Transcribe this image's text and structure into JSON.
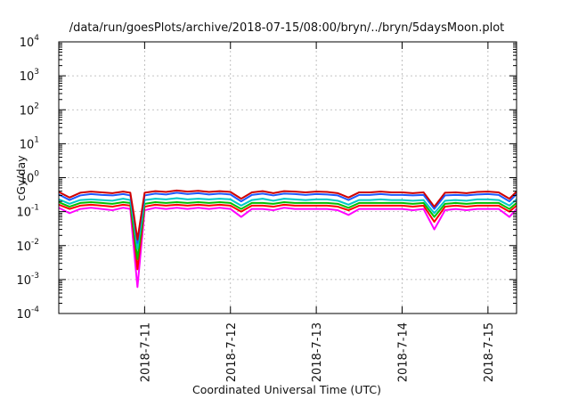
{
  "chart_data": {
    "type": "line",
    "title": "/data/run/goesPlots/archive/2018-07-15/08:00/bryn/../bryn/5daysMoon.plot",
    "xlabel": "Coordinated Universal Time (UTC)",
    "ylabel": "cGy/day",
    "yscale": "log",
    "ylim": [
      0.0001,
      10000
    ],
    "y_ticks": [
      {
        "base": "10",
        "exp": "-4",
        "value": 0.0001
      },
      {
        "base": "10",
        "exp": "-3",
        "value": 0.001
      },
      {
        "base": "10",
        "exp": "-2",
        "value": 0.01
      },
      {
        "base": "10",
        "exp": "-1",
        "value": 0.1
      },
      {
        "base": "10",
        "exp": "0",
        "value": 1
      },
      {
        "base": "10",
        "exp": "1",
        "value": 10
      },
      {
        "base": "10",
        "exp": "2",
        "value": 100
      },
      {
        "base": "10",
        "exp": "3",
        "value": 1000
      },
      {
        "base": "10",
        "exp": "4",
        "value": 10000
      }
    ],
    "xlim": [
      "2018-07-10T00:00",
      "2018-07-15T08:00"
    ],
    "x_ticks": [
      {
        "label": "2018-7-11",
        "value": "2018-07-11T00:00"
      },
      {
        "label": "2018-7-12",
        "value": "2018-07-12T00:00"
      },
      {
        "label": "2018-7-13",
        "value": "2018-07-13T00:00"
      },
      {
        "label": "2018-7-14",
        "value": "2018-07-14T00:00"
      },
      {
        "label": "2018-7-15",
        "value": "2018-07-15T00:00"
      }
    ],
    "grid": true,
    "x": [
      "2018-07-10T00:00",
      "2018-07-10T03:00",
      "2018-07-10T06:00",
      "2018-07-10T09:00",
      "2018-07-10T12:00",
      "2018-07-10T15:00",
      "2018-07-10T18:00",
      "2018-07-10T20:00",
      "2018-07-10T21:00",
      "2018-07-10T22:00",
      "2018-07-11T00:00",
      "2018-07-11T03:00",
      "2018-07-11T06:00",
      "2018-07-11T09:00",
      "2018-07-11T12:00",
      "2018-07-11T15:00",
      "2018-07-11T18:00",
      "2018-07-11T21:00",
      "2018-07-12T00:00",
      "2018-07-12T03:00",
      "2018-07-12T06:00",
      "2018-07-12T09:00",
      "2018-07-12T12:00",
      "2018-07-12T15:00",
      "2018-07-12T18:00",
      "2018-07-12T21:00",
      "2018-07-13T00:00",
      "2018-07-13T03:00",
      "2018-07-13T06:00",
      "2018-07-13T09:00",
      "2018-07-13T12:00",
      "2018-07-13T15:00",
      "2018-07-13T18:00",
      "2018-07-13T21:00",
      "2018-07-14T00:00",
      "2018-07-14T03:00",
      "2018-07-14T06:00",
      "2018-07-14T09:00",
      "2018-07-14T12:00",
      "2018-07-14T15:00",
      "2018-07-14T18:00",
      "2018-07-14T21:00",
      "2018-07-15T00:00",
      "2018-07-15T03:00",
      "2018-07-15T06:00",
      "2018-07-15T08:00"
    ],
    "series": [
      {
        "color": "#ff00ff",
        "values": [
          0.13,
          0.09,
          0.12,
          0.13,
          0.12,
          0.11,
          0.13,
          0.12,
          0.008,
          0.0006,
          0.11,
          0.13,
          0.12,
          0.13,
          0.12,
          0.13,
          0.12,
          0.13,
          0.12,
          0.07,
          0.12,
          0.12,
          0.11,
          0.13,
          0.12,
          0.12,
          0.12,
          0.12,
          0.11,
          0.08,
          0.12,
          0.12,
          0.12,
          0.12,
          0.12,
          0.11,
          0.12,
          0.03,
          0.11,
          0.12,
          0.11,
          0.12,
          0.12,
          0.12,
          0.07,
          0.12
        ]
      },
      {
        "color": "#ff0000",
        "values": [
          0.16,
          0.12,
          0.15,
          0.16,
          0.15,
          0.14,
          0.16,
          0.15,
          0.02,
          0.002,
          0.14,
          0.16,
          0.15,
          0.16,
          0.15,
          0.16,
          0.15,
          0.16,
          0.15,
          0.1,
          0.15,
          0.15,
          0.14,
          0.16,
          0.15,
          0.15,
          0.15,
          0.15,
          0.14,
          0.11,
          0.15,
          0.15,
          0.15,
          0.15,
          0.15,
          0.14,
          0.15,
          0.05,
          0.14,
          0.15,
          0.14,
          0.15,
          0.15,
          0.15,
          0.1,
          0.15
        ]
      },
      {
        "color": "#00c000",
        "values": [
          0.19,
          0.14,
          0.18,
          0.19,
          0.18,
          0.17,
          0.19,
          0.18,
          0.03,
          0.004,
          0.17,
          0.19,
          0.18,
          0.19,
          0.18,
          0.19,
          0.18,
          0.19,
          0.18,
          0.12,
          0.18,
          0.18,
          0.17,
          0.19,
          0.18,
          0.18,
          0.18,
          0.18,
          0.17,
          0.13,
          0.18,
          0.18,
          0.18,
          0.18,
          0.18,
          0.17,
          0.18,
          0.07,
          0.17,
          0.18,
          0.17,
          0.18,
          0.18,
          0.18,
          0.12,
          0.18
        ]
      },
      {
        "color": "#00c8c8",
        "values": [
          0.23,
          0.17,
          0.22,
          0.23,
          0.22,
          0.21,
          0.24,
          0.22,
          0.05,
          0.008,
          0.22,
          0.24,
          0.23,
          0.25,
          0.23,
          0.24,
          0.23,
          0.24,
          0.23,
          0.15,
          0.22,
          0.24,
          0.21,
          0.24,
          0.23,
          0.22,
          0.23,
          0.23,
          0.21,
          0.16,
          0.22,
          0.22,
          0.23,
          0.22,
          0.22,
          0.21,
          0.22,
          0.09,
          0.21,
          0.22,
          0.21,
          0.23,
          0.23,
          0.22,
          0.15,
          0.23
        ]
      },
      {
        "color": "#1e5aff",
        "values": [
          0.32,
          0.22,
          0.3,
          0.33,
          0.31,
          0.3,
          0.33,
          0.3,
          0.07,
          0.012,
          0.3,
          0.34,
          0.32,
          0.36,
          0.33,
          0.35,
          0.32,
          0.34,
          0.32,
          0.2,
          0.31,
          0.34,
          0.3,
          0.34,
          0.33,
          0.31,
          0.33,
          0.32,
          0.3,
          0.22,
          0.31,
          0.31,
          0.33,
          0.31,
          0.31,
          0.3,
          0.31,
          0.12,
          0.3,
          0.31,
          0.3,
          0.32,
          0.33,
          0.31,
          0.2,
          0.33
        ]
      },
      {
        "color": "#d00000",
        "values": [
          0.38,
          0.26,
          0.36,
          0.39,
          0.37,
          0.35,
          0.39,
          0.36,
          0.08,
          0.015,
          0.36,
          0.4,
          0.38,
          0.42,
          0.39,
          0.41,
          0.38,
          0.4,
          0.38,
          0.24,
          0.37,
          0.4,
          0.35,
          0.4,
          0.39,
          0.37,
          0.39,
          0.38,
          0.35,
          0.26,
          0.37,
          0.37,
          0.39,
          0.37,
          0.37,
          0.35,
          0.37,
          0.14,
          0.36,
          0.37,
          0.35,
          0.38,
          0.39,
          0.37,
          0.24,
          0.39
        ]
      }
    ]
  }
}
